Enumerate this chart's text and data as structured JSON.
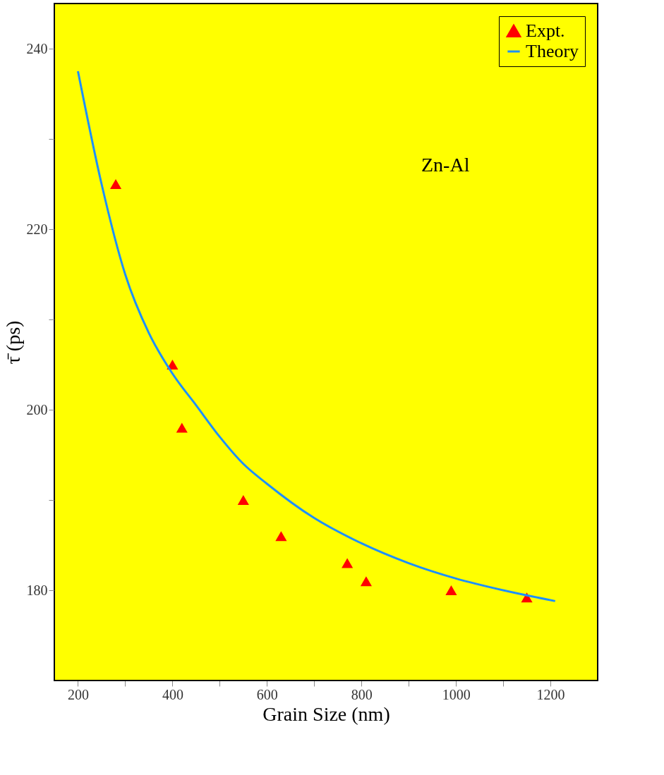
{
  "chart_data": {
    "type": "scatter",
    "xlabel": "Grain Size (nm)",
    "ylabel": "τ̄  (ps)",
    "xlim": [
      150,
      1300
    ],
    "ylim": [
      170,
      245
    ],
    "xticks": [
      200,
      {
        "value": 300,
        "label": null
      },
      400,
      {
        "value": 500,
        "label": null
      },
      600,
      {
        "value": 700,
        "label": null
      },
      800,
      {
        "value": 900,
        "label": null
      },
      1000,
      {
        "value": 1100,
        "label": null
      },
      1200
    ],
    "yticks": [
      180,
      {
        "value": 190,
        "label": null
      },
      200,
      {
        "value": 210,
        "label": null
      },
      220,
      {
        "value": 230,
        "label": null
      },
      240
    ],
    "grid": false,
    "legend": "top right",
    "annotations": [
      "Zn-Al"
    ],
    "series": [
      {
        "name": "Expt.",
        "marker": "triangle",
        "color": "#ff0000",
        "x": [
          280,
          400,
          420,
          550,
          630,
          770,
          810,
          990,
          1150
        ],
        "values": [
          225,
          205,
          198,
          190,
          186,
          183,
          181,
          180,
          179.2
        ]
      },
      {
        "name": "Theory",
        "type": "line",
        "color": "#1e90ff",
        "x": [
          200,
          250,
          300,
          350,
          400,
          450,
          500,
          550,
          600,
          700,
          800,
          900,
          1000,
          1100,
          1210
        ],
        "values": [
          237.5,
          225,
          215,
          208.5,
          204,
          200.5,
          197,
          194,
          191.8,
          188,
          185.2,
          183,
          181.3,
          180,
          178.8
        ]
      }
    ]
  }
}
